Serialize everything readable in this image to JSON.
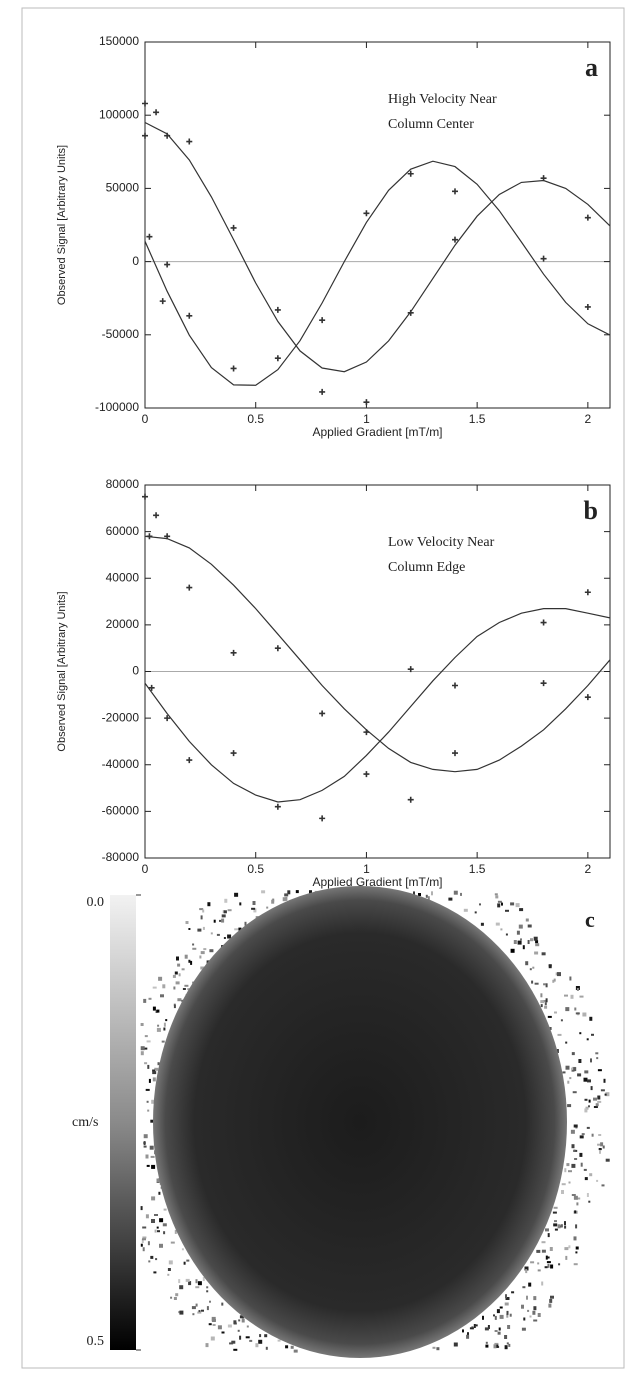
{
  "chart_data": [
    {
      "type": "scatter",
      "panel_label": "a",
      "annotations": [
        "High Velocity Near",
        "Column Center"
      ],
      "y_label": "Observed Signal [Arbitrary Units]",
      "x_label": "Applied Gradient [mT/m]",
      "xlim": [
        0,
        2.1
      ],
      "xticks": [
        0,
        0.5,
        1,
        1.5,
        2
      ],
      "ylim": [
        -100000,
        150000
      ],
      "yticks": [
        -100000,
        -50000,
        0,
        50000,
        100000,
        150000
      ],
      "color": "#333333",
      "series": [
        {
          "mode": "markers",
          "x": [
            0,
            0,
            0.02,
            0.05,
            0.08,
            0.1,
            0.1,
            0.2,
            0.2,
            0.4,
            0.4,
            0.6,
            0.6,
            0.8,
            0.8,
            1,
            1,
            1.2,
            1.2,
            1.4,
            1.4,
            1.8,
            1.8,
            2,
            2
          ],
          "values": [
            108000,
            86000,
            17000,
            102000,
            -27000,
            86000,
            -2000,
            82000,
            -37000,
            23000,
            -73000,
            -33000,
            -66000,
            -40000,
            -89000,
            33000,
            -96000,
            60000,
            -35000,
            48000,
            15000,
            57000,
            2000,
            30000,
            -31000
          ]
        },
        {
          "mode": "lines",
          "x": [
            0,
            0.1,
            0.2,
            0.3,
            0.4,
            0.5,
            0.6,
            0.7,
            0.8,
            0.9,
            1.0,
            1.1,
            1.2,
            1.3,
            1.4,
            1.5,
            1.6,
            1.7,
            1.8,
            1.9,
            2.0,
            2.1
          ],
          "values": [
            95000,
            87200,
            69400,
            44200,
            15000,
            -14600,
            -40900,
            -61000,
            -72700,
            -75200,
            -68600,
            -54200,
            -34300,
            -11500,
            11200,
            31000,
            45800,
            54100,
            55400,
            50000,
            39100,
            24400
          ]
        },
        {
          "mode": "lines",
          "x": [
            0,
            0.1,
            0.2,
            0.3,
            0.4,
            0.5,
            0.6,
            0.7,
            0.8,
            0.9,
            1.0,
            1.1,
            1.2,
            1.3,
            1.4,
            1.5,
            1.6,
            1.7,
            1.8,
            1.9,
            2.0,
            2.1
          ],
          "values": [
            13900,
            -20200,
            -50300,
            -72400,
            -84200,
            -84500,
            -73800,
            -54000,
            -28300,
            0,
            26800,
            48700,
            63100,
            68600,
            64900,
            52800,
            34800,
            13400,
            -8600,
            -27900,
            -42500,
            -50200
          ]
        }
      ]
    },
    {
      "type": "scatter",
      "panel_label": "b",
      "annotations": [
        "Low Velocity Near",
        "Column Edge"
      ],
      "y_label": "Observed Signal [Arbitrary Units]",
      "x_label": "Applied Gradient [mT/m]",
      "xlim": [
        0,
        2.1
      ],
      "xticks": [
        0,
        0.5,
        1,
        1.5,
        2
      ],
      "ylim": [
        -80000,
        80000
      ],
      "yticks": [
        -80000,
        -60000,
        -40000,
        -20000,
        0,
        20000,
        40000,
        60000,
        80000
      ],
      "color": "#333333",
      "series": [
        {
          "mode": "markers",
          "x": [
            0,
            0.02,
            0.03,
            0.05,
            0.1,
            0.1,
            0.2,
            0.2,
            0.4,
            0.4,
            0.6,
            0.6,
            0.8,
            0.8,
            1,
            1,
            1.2,
            1.2,
            1.4,
            1.4,
            1.8,
            1.8,
            2,
            2
          ],
          "values": [
            75000,
            58000,
            -7000,
            67000,
            58000,
            -20000,
            36000,
            -38000,
            8000,
            -35000,
            10000,
            -58000,
            -18000,
            -63000,
            -26000,
            -44000,
            1000,
            -55000,
            -6000,
            -35000,
            21000,
            -5000,
            34000,
            -11000
          ]
        },
        {
          "mode": "lines",
          "x": [
            0,
            0.1,
            0.2,
            0.3,
            0.4,
            0.5,
            0.6,
            0.7,
            0.8,
            0.9,
            1.0,
            1.1,
            1.2,
            1.3,
            1.4,
            1.5,
            1.6,
            1.7,
            1.8,
            1.9,
            2.0,
            2.1
          ],
          "values": [
            58000,
            57000,
            53000,
            46000,
            37000,
            27000,
            16000,
            5000,
            -6000,
            -16000,
            -25000,
            -33000,
            -39000,
            -42000,
            -43000,
            -42000,
            -38000,
            -32000,
            -25000,
            -16000,
            -6000,
            5000
          ]
        },
        {
          "mode": "lines",
          "x": [
            0,
            0.1,
            0.2,
            0.3,
            0.4,
            0.5,
            0.6,
            0.7,
            0.8,
            0.9,
            1.0,
            1.1,
            1.2,
            1.3,
            1.4,
            1.5,
            1.6,
            1.7,
            1.8,
            1.9,
            2.0,
            2.1
          ],
          "values": [
            -5000,
            -18000,
            -30000,
            -40000,
            -48000,
            -53000,
            -56000,
            -55000,
            -51000,
            -45000,
            -36000,
            -26000,
            -15000,
            -4000,
            6000,
            15000,
            21000,
            25000,
            27000,
            27000,
            25000,
            23000
          ]
        }
      ]
    }
  ],
  "image_panel": {
    "panel_label": "c",
    "colorbar": {
      "label": "cm/s",
      "lim": [
        0,
        0.5
      ],
      "ticks": [
        {
          "value": 0,
          "label": "0.0"
        },
        {
          "value": 0.5,
          "label": "0.5"
        }
      ]
    }
  }
}
